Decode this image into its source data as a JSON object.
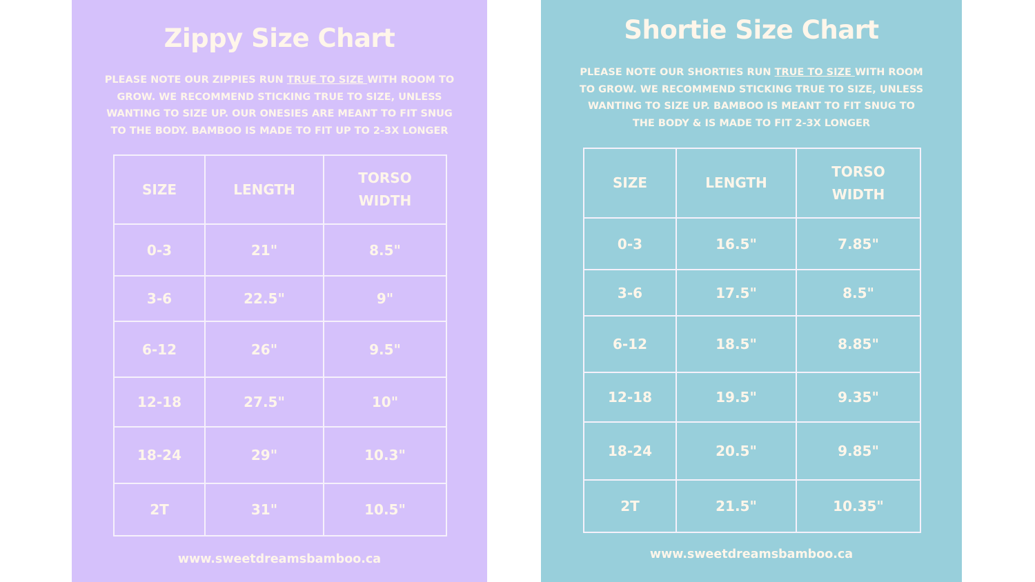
{
  "zippy": {
    "title": "Zippy Size Chart",
    "note": {
      "part1": "PLEASE NOTE OUR ZIPPIES  RUN ",
      "underlined": "TRUE TO SIZE ",
      "part2": "WITH ROOM TO GROW. WE RECOMMEND STICKING TRUE TO SIZE, UNLESS WANTING TO SIZE UP. OUR ONESIES ARE MEANT TO FIT SNUG TO THE BODY. BAMBOO IS MADE TO FIT UP TO 2-3X LONGER"
    },
    "headers": [
      "SIZE",
      "LENGTH",
      "TORSO WIDTH"
    ],
    "rows": [
      {
        "size": "0-3",
        "length": "21\"",
        "torso": "8.5\""
      },
      {
        "size": "3-6",
        "length": "22.5\"",
        "torso": "9\""
      },
      {
        "size": "6-12",
        "length": "26\"",
        "torso": "9.5\""
      },
      {
        "size": "12-18",
        "length": "27.5\"",
        "torso": "10\""
      },
      {
        "size": "18-24",
        "length": "29\"",
        "torso": "10.3\""
      },
      {
        "size": "2T",
        "length": "31\"",
        "torso": "10.5\""
      }
    ],
    "footer": "www.sweetdreamsbamboo.ca"
  },
  "shortie": {
    "title": "Shortie Size Chart",
    "note": {
      "part1": "PLEASE NOTE OUR SHORTIES RUN ",
      "underlined": "TRUE TO SIZE ",
      "part2": "WITH ROOM TO GROW. WE RECOMMEND STICKING TRUE TO SIZE, UNLESS WANTING TO SIZE UP. BAMBOO IS MEANT TO FIT SNUG TO THE BODY & IS MADE TO FIT 2-3X LONGER"
    },
    "headers": [
      "SIZE",
      "LENGTH",
      "TORSO WIDTH"
    ],
    "rows": [
      {
        "size": "0-3",
        "length": "16.5\"",
        "torso": "7.85\""
      },
      {
        "size": "3-6",
        "length": "17.5\"",
        "torso": "8.5\""
      },
      {
        "size": "6-12",
        "length": "18.5\"",
        "torso": "8.85\""
      },
      {
        "size": "12-18",
        "length": "19.5\"",
        "torso": "9.35\""
      },
      {
        "size": "18-24",
        "length": "20.5\"",
        "torso": "9.85\""
      },
      {
        "size": "2T",
        "length": "21.5\"",
        "torso": "10.35\""
      }
    ],
    "footer": "www.sweetdreamsbamboo.ca"
  },
  "colors": {
    "zippy_bg": "#d5c1fb",
    "shortie_bg": "#98cfdb",
    "text": "#fff6ea"
  }
}
